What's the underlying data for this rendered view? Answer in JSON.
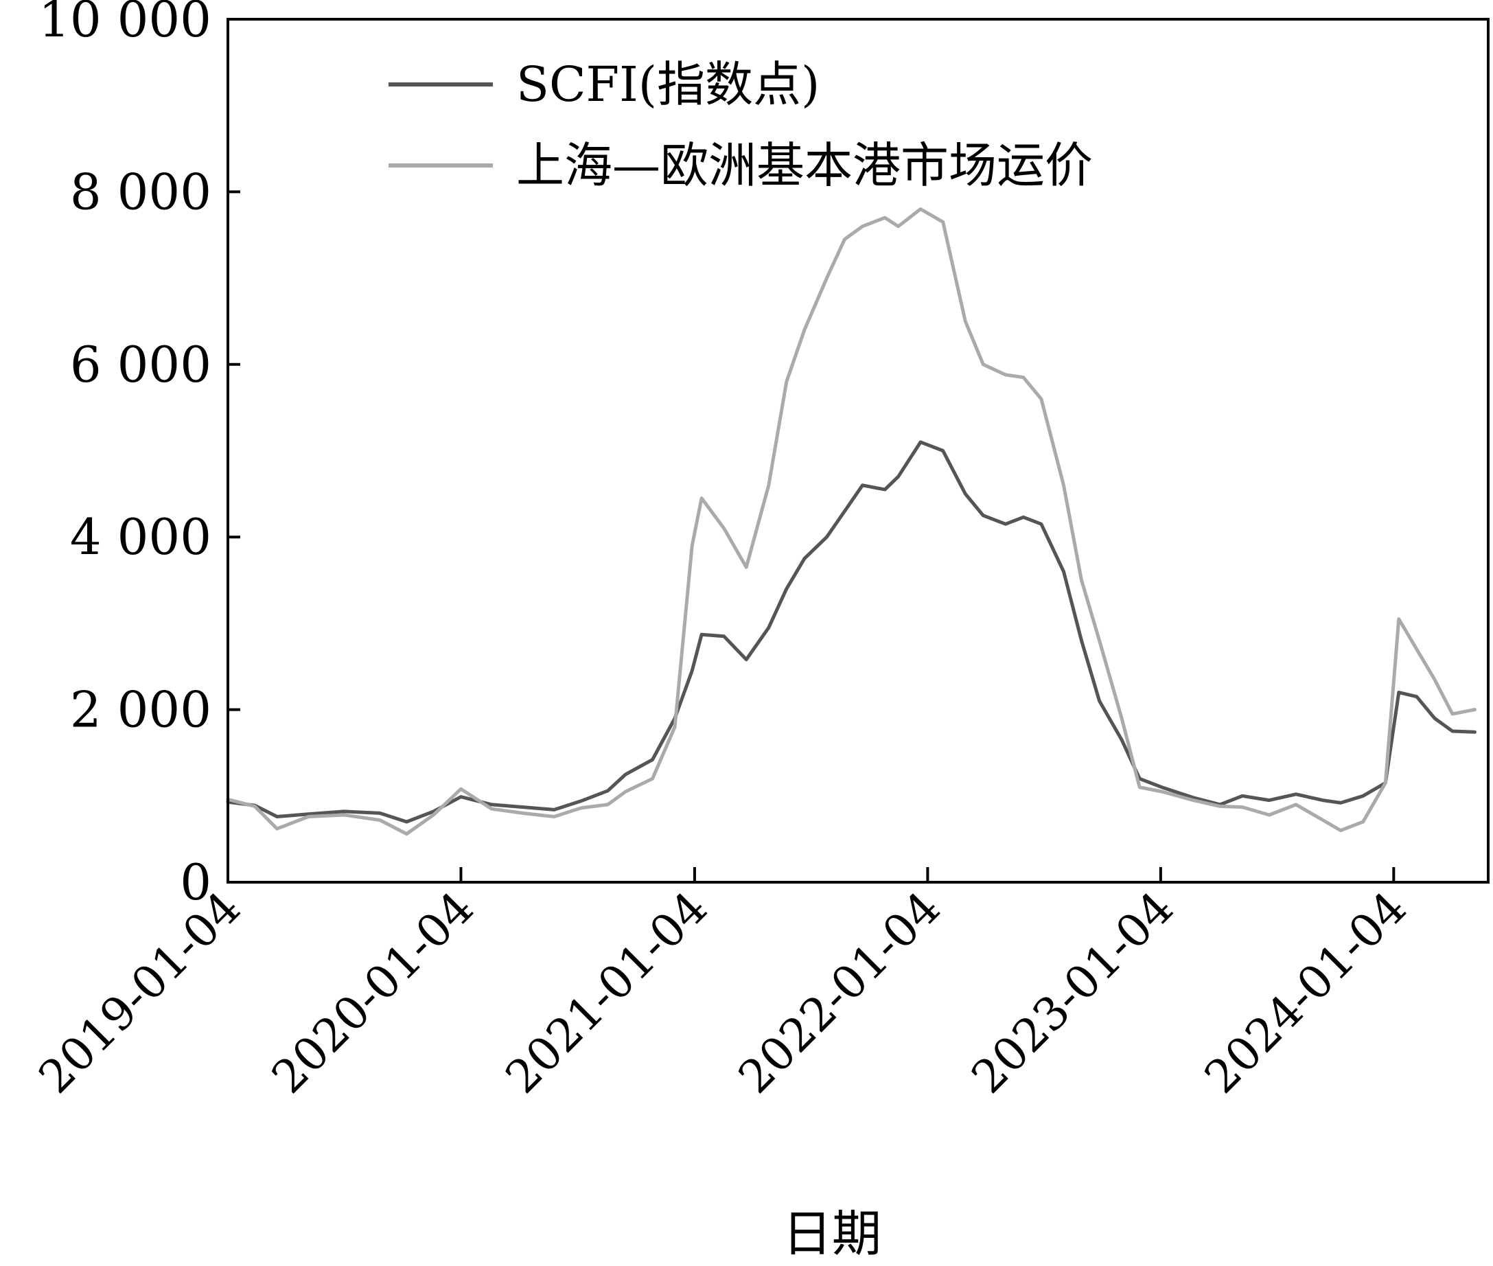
{
  "chart_data": {
    "type": "line",
    "xlabel": "日期",
    "ylabel": "",
    "ylim": [
      0,
      10000
    ],
    "xlim": [
      "2019-01-04",
      "2024-05-31"
    ],
    "y_ticks": [
      {
        "value": 0,
        "label": "0"
      },
      {
        "value": 2000,
        "label": "2 000"
      },
      {
        "value": 4000,
        "label": "4 000"
      },
      {
        "value": 6000,
        "label": "6 000"
      },
      {
        "value": 8000,
        "label": "8 000"
      },
      {
        "value": 10000,
        "label": "10 000"
      }
    ],
    "x_ticks": [
      "2019-01-04",
      "2020-01-04",
      "2021-01-04",
      "2022-01-04",
      "2023-01-04",
      "2024-01-04"
    ],
    "grid": false,
    "legend_position": "top-left",
    "series": [
      {
        "name": "SCFI(指数点)",
        "color": "#555555",
        "points": [
          [
            "2019-01-04",
            930
          ],
          [
            "2019-02-15",
            890
          ],
          [
            "2019-03-22",
            760
          ],
          [
            "2019-05-10",
            790
          ],
          [
            "2019-07-05",
            820
          ],
          [
            "2019-08-30",
            800
          ],
          [
            "2019-10-11",
            700
          ],
          [
            "2019-11-22",
            820
          ],
          [
            "2020-01-04",
            990
          ],
          [
            "2020-02-21",
            900
          ],
          [
            "2020-04-10",
            870
          ],
          [
            "2020-05-29",
            840
          ],
          [
            "2020-07-10",
            940
          ],
          [
            "2020-08-21",
            1060
          ],
          [
            "2020-09-18",
            1250
          ],
          [
            "2020-10-30",
            1420
          ],
          [
            "2020-12-04",
            1900
          ],
          [
            "2020-12-31",
            2450
          ],
          [
            "2021-01-15",
            2870
          ],
          [
            "2021-02-19",
            2850
          ],
          [
            "2021-03-26",
            2580
          ],
          [
            "2021-04-30",
            2950
          ],
          [
            "2021-05-28",
            3400
          ],
          [
            "2021-06-25",
            3750
          ],
          [
            "2021-07-30",
            4000
          ],
          [
            "2021-08-27",
            4300
          ],
          [
            "2021-09-24",
            4600
          ],
          [
            "2021-10-29",
            4550
          ],
          [
            "2021-11-19",
            4700
          ],
          [
            "2021-12-24",
            5100
          ],
          [
            "2022-01-28",
            5000
          ],
          [
            "2022-03-04",
            4500
          ],
          [
            "2022-04-01",
            4250
          ],
          [
            "2022-05-06",
            4150
          ],
          [
            "2022-06-03",
            4230
          ],
          [
            "2022-07-01",
            4150
          ],
          [
            "2022-08-05",
            3600
          ],
          [
            "2022-09-02",
            2800
          ],
          [
            "2022-09-30",
            2100
          ],
          [
            "2022-11-04",
            1650
          ],
          [
            "2022-12-02",
            1200
          ],
          [
            "2023-01-06",
            1100
          ],
          [
            "2023-02-24",
            980
          ],
          [
            "2023-04-07",
            900
          ],
          [
            "2023-05-12",
            1000
          ],
          [
            "2023-06-23",
            950
          ],
          [
            "2023-08-04",
            1020
          ],
          [
            "2023-09-15",
            950
          ],
          [
            "2023-10-13",
            920
          ],
          [
            "2023-11-17",
            1000
          ],
          [
            "2023-12-22",
            1150
          ],
          [
            "2024-01-12",
            2200
          ],
          [
            "2024-02-09",
            2150
          ],
          [
            "2024-03-08",
            1900
          ],
          [
            "2024-04-05",
            1750
          ],
          [
            "2024-05-10",
            1740
          ]
        ]
      },
      {
        "name": "上海—欧洲基本港市场运价",
        "color": "#aaaaaa",
        "points": [
          [
            "2019-01-04",
            960
          ],
          [
            "2019-02-15",
            880
          ],
          [
            "2019-03-22",
            620
          ],
          [
            "2019-05-10",
            760
          ],
          [
            "2019-07-05",
            780
          ],
          [
            "2019-08-30",
            720
          ],
          [
            "2019-10-11",
            560
          ],
          [
            "2019-11-22",
            780
          ],
          [
            "2020-01-04",
            1080
          ],
          [
            "2020-02-21",
            850
          ],
          [
            "2020-04-10",
            800
          ],
          [
            "2020-05-29",
            760
          ],
          [
            "2020-07-10",
            860
          ],
          [
            "2020-08-21",
            900
          ],
          [
            "2020-09-18",
            1050
          ],
          [
            "2020-10-30",
            1200
          ],
          [
            "2020-12-04",
            1800
          ],
          [
            "2020-12-31",
            3900
          ],
          [
            "2021-01-15",
            4450
          ],
          [
            "2021-02-19",
            4100
          ],
          [
            "2021-03-26",
            3650
          ],
          [
            "2021-04-30",
            4600
          ],
          [
            "2021-05-28",
            5800
          ],
          [
            "2021-06-25",
            6400
          ],
          [
            "2021-07-30",
            7000
          ],
          [
            "2021-08-27",
            7450
          ],
          [
            "2021-09-24",
            7600
          ],
          [
            "2021-10-29",
            7700
          ],
          [
            "2021-11-19",
            7600
          ],
          [
            "2021-12-24",
            7800
          ],
          [
            "2022-01-28",
            7650
          ],
          [
            "2022-03-04",
            6500
          ],
          [
            "2022-04-01",
            6000
          ],
          [
            "2022-05-06",
            5880
          ],
          [
            "2022-06-03",
            5850
          ],
          [
            "2022-07-01",
            5600
          ],
          [
            "2022-08-05",
            4600
          ],
          [
            "2022-09-02",
            3500
          ],
          [
            "2022-09-30",
            2800
          ],
          [
            "2022-11-04",
            1900
          ],
          [
            "2022-12-02",
            1100
          ],
          [
            "2023-01-06",
            1050
          ],
          [
            "2023-02-24",
            950
          ],
          [
            "2023-04-07",
            880
          ],
          [
            "2023-05-12",
            870
          ],
          [
            "2023-06-23",
            780
          ],
          [
            "2023-08-04",
            900
          ],
          [
            "2023-09-15",
            720
          ],
          [
            "2023-10-13",
            600
          ],
          [
            "2023-11-17",
            700
          ],
          [
            "2023-12-22",
            1150
          ],
          [
            "2024-01-12",
            3050
          ],
          [
            "2024-02-09",
            2700
          ],
          [
            "2024-03-08",
            2350
          ],
          [
            "2024-04-05",
            1950
          ],
          [
            "2024-05-10",
            2000
          ]
        ]
      }
    ]
  }
}
